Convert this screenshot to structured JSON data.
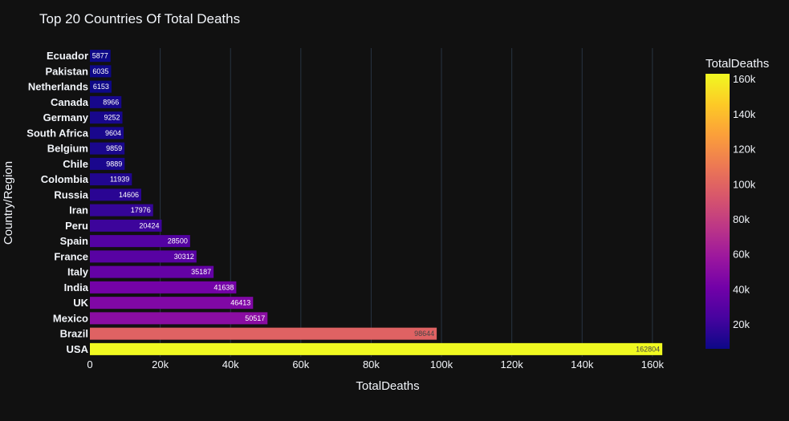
{
  "chart_data": {
    "type": "bar",
    "orientation": "horizontal",
    "title": "Top 20 Countries Of Total Deaths",
    "xlabel": "TotalDeaths",
    "ylabel": "Country/Region",
    "xlim": [
      0,
      163000
    ],
    "x_ticks": [
      0,
      20000,
      40000,
      60000,
      80000,
      100000,
      120000,
      140000,
      160000
    ],
    "x_tick_labels": [
      "0",
      "20k",
      "40k",
      "60k",
      "80k",
      "100k",
      "120k",
      "140k",
      "160k"
    ],
    "grid": true,
    "categories": [
      "USA",
      "Brazil",
      "Mexico",
      "UK",
      "India",
      "Italy",
      "France",
      "Spain",
      "Peru",
      "Iran",
      "Russia",
      "Colombia",
      "Chile",
      "Belgium",
      "South Africa",
      "Germany",
      "Canada",
      "Netherlands",
      "Pakistan",
      "Ecuador"
    ],
    "values": [
      162804,
      98644,
      50517,
      46413,
      41638,
      35187,
      30312,
      28500,
      20424,
      17976,
      14606,
      11939,
      9889,
      9859,
      9604,
      9252,
      8966,
      6153,
      6035,
      5877
    ],
    "colorbar": {
      "title": "TotalDeaths",
      "colorscale": "plasma",
      "range": [
        5877,
        162804
      ],
      "ticks": [
        20000,
        40000,
        60000,
        80000,
        100000,
        120000,
        140000,
        160000
      ],
      "tick_labels": [
        "20k",
        "40k",
        "60k",
        "80k",
        "100k",
        "120k",
        "140k",
        "160k"
      ]
    },
    "colors": {
      "background": "#111111",
      "grid": "#283442",
      "text": "#f2f5fa"
    }
  }
}
